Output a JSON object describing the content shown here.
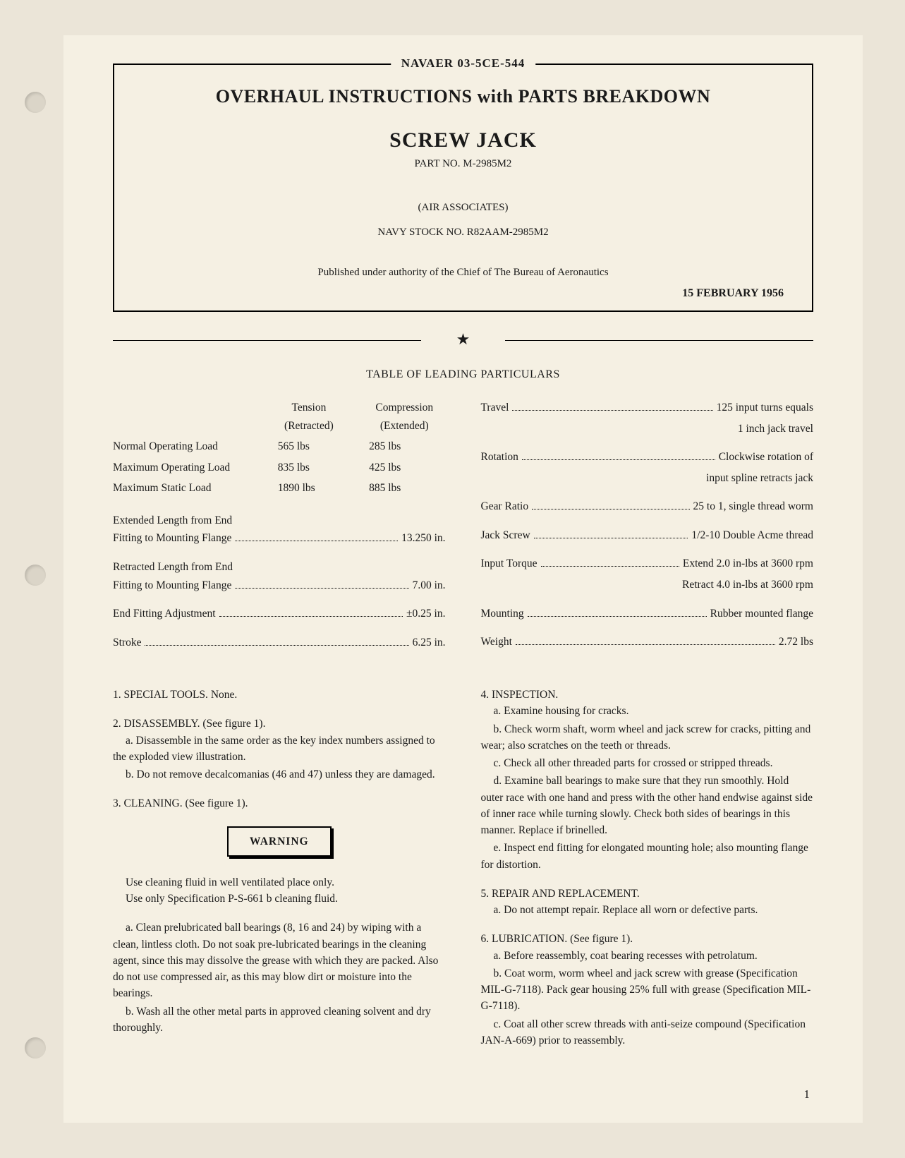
{
  "doc_code": "NAVAER 03-5CE-544",
  "main_title": "OVERHAUL INSTRUCTIONS with PARTS BREAKDOWN",
  "product_name": "SCREW JACK",
  "part_no": "PART NO. M-2985M2",
  "manufacturer": "(AIR ASSOCIATES)",
  "stock_no": "NAVY STOCK NO. R82AAM-2985M2",
  "authority": "Published under authority of the Chief of The Bureau of Aeronautics",
  "pub_date": "15 FEBRUARY 1956",
  "table_title": "TABLE OF LEADING PARTICULARS",
  "loads": {
    "header_tension": "Tension",
    "header_tension_sub": "(Retracted)",
    "header_compression": "Compression",
    "header_compression_sub": "(Extended)",
    "rows": [
      {
        "label": "Normal Operating Load",
        "tension": "565 lbs",
        "compression": "285 lbs"
      },
      {
        "label": "Maximum Operating Load",
        "tension": "835 lbs",
        "compression": "425 lbs"
      },
      {
        "label": "Maximum Static Load",
        "tension": "1890 lbs",
        "compression": "885 lbs"
      }
    ]
  },
  "specs_left": [
    {
      "label_line1": "Extended Length from End",
      "label_line2": "Fitting to Mounting Flange",
      "value": "13.250 in."
    },
    {
      "label_line1": "Retracted Length from End",
      "label_line2": "Fitting to Mounting Flange",
      "value": "7.00 in."
    },
    {
      "label_line1": "",
      "label_line2": "End Fitting Adjustment",
      "value": "±0.25 in."
    },
    {
      "label_line1": "",
      "label_line2": "Stroke",
      "value": "6.25 in."
    }
  ],
  "specs_right": [
    {
      "label": "Travel",
      "value": "125 input turns equals",
      "value2": "1 inch jack travel"
    },
    {
      "label": "Rotation",
      "value": "Clockwise rotation of",
      "value2": "input spline retracts jack"
    },
    {
      "label": "Gear Ratio",
      "value": "25 to 1, single thread worm",
      "value2": ""
    },
    {
      "label": "Jack Screw",
      "value": "1/2-10 Double Acme thread",
      "value2": ""
    },
    {
      "label": "Input Torque",
      "value": "Extend 2.0 in-lbs at 3600 rpm",
      "value2": "Retract 4.0 in-lbs at 3600 rpm"
    },
    {
      "label": "Mounting",
      "value": "Rubber mounted flange",
      "value2": ""
    },
    {
      "label": "Weight",
      "value": "2.72 lbs",
      "value2": ""
    }
  ],
  "sections_left": {
    "s1_title": "1. SPECIAL TOOLS.",
    "s1_text": " None.",
    "s2_title": "2. DISASSEMBLY.",
    "s2_ref": " (See figure 1).",
    "s2_a": "a. Disassemble in the same order as the key index numbers assigned to the exploded view illustration.",
    "s2_b": "b. Do not remove decalcomanias (46 and 47) unless they are damaged.",
    "s3_title": "3. CLEANING.",
    "s3_ref": " (See figure 1).",
    "warning_label": "WARNING",
    "warning_line1": "Use cleaning fluid in well ventilated place only.",
    "warning_line2": "Use only Specification P-S-661 b cleaning fluid.",
    "s3_a": "a. Clean prelubricated ball bearings (8, 16 and 24) by wiping with a clean, lintless cloth. Do not soak pre-lubricated bearings in the cleaning agent, since this may dissolve the grease with which they are packed. Also do not use compressed air, as this may blow dirt or moisture into the bearings.",
    "s3_b": "b. Wash all the other metal parts in approved cleaning solvent and dry thoroughly."
  },
  "sections_right": {
    "s4_title": "4. INSPECTION.",
    "s4_a": "a. Examine housing for cracks.",
    "s4_b": "b. Check worm shaft, worm wheel and jack screw for cracks, pitting and wear; also scratches on the teeth or threads.",
    "s4_c": "c. Check all other threaded parts for crossed or stripped threads.",
    "s4_d": "d. Examine ball bearings to make sure that they run smoothly. Hold outer race with one hand and press with the other hand endwise against side of inner race while turning slowly. Check both sides of bearings in this manner. Replace if brinelled.",
    "s4_e": "e. Inspect end fitting for elongated mounting hole; also mounting flange for distortion.",
    "s5_title": "5. REPAIR AND REPLACEMENT.",
    "s5_a": "a. Do not attempt repair. Replace all worn or defective parts.",
    "s6_title": "6. LUBRICATION.",
    "s6_ref": " (See figure 1).",
    "s6_a": "a. Before reassembly, coat bearing recesses with petrolatum.",
    "s6_b": "b. Coat worm, worm wheel and jack screw with grease (Specification MIL-G-7118). Pack gear housing 25% full with grease (Specification MIL-G-7118).",
    "s6_c": "c. Coat all other screw threads with anti-seize compound (Specification JAN-A-669) prior to reassembly."
  },
  "page_number": "1"
}
